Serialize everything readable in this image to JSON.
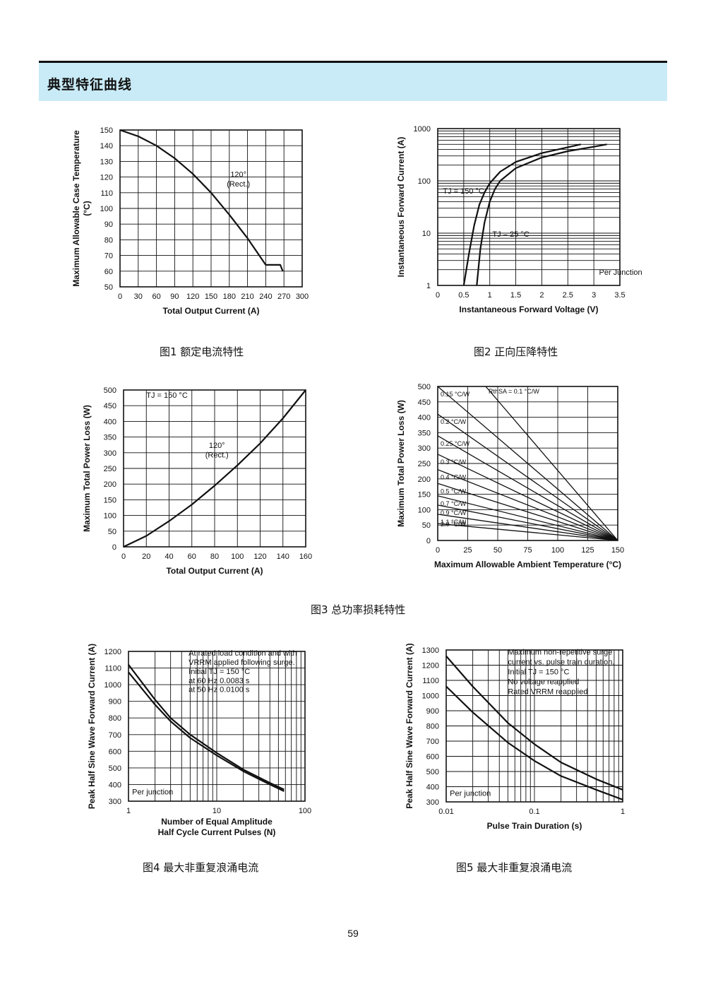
{
  "header": {
    "title": "典型特征曲线"
  },
  "captions": {
    "fig1": "图1  额定电流特性",
    "fig2": "图2  正向压降特性",
    "fig3": "图3  总功率损耗特性",
    "fig4": "图4  最大非重复浪涌电流",
    "fig5": "图5  最大非重复浪涌电流"
  },
  "page_number": "59",
  "chart_data": [
    {
      "id": "fig1",
      "type": "line",
      "xlabel": "Total Output Current (A)",
      "ylabel": "Maximum Allowable Case Temperature (°C)",
      "xlim": [
        0,
        300
      ],
      "ylim": [
        50,
        150
      ],
      "xticks": [
        0,
        30,
        60,
        90,
        120,
        150,
        180,
        210,
        240,
        270,
        300
      ],
      "yticks": [
        50,
        60,
        70,
        80,
        90,
        100,
        110,
        120,
        130,
        140,
        150
      ],
      "grid": true,
      "annotations": [
        {
          "text": "120°",
          "x": 195,
          "y": 120
        },
        {
          "text": "(Rect.)",
          "x": 195,
          "y": 114
        }
      ],
      "series": [
        {
          "name": "120° (Rect.)",
          "x": [
            0,
            30,
            60,
            90,
            120,
            150,
            180,
            210,
            240,
            264,
            268
          ],
          "y": [
            150,
            146,
            140,
            132,
            122,
            110,
            96,
            81,
            64,
            64,
            60
          ]
        }
      ]
    },
    {
      "id": "fig2",
      "type": "line",
      "xlabel": "Instantaneous Forward Voltage (V)",
      "ylabel": "Instantaneous Forward Current (A)",
      "xlim": [
        0,
        3.5
      ],
      "ylim": [
        1,
        1000
      ],
      "yscale": "log",
      "xticks": [
        0,
        0.5,
        1.0,
        1.5,
        2.0,
        2.5,
        3.0,
        3.5
      ],
      "yticks": [
        1,
        10,
        100,
        1000
      ],
      "grid": true,
      "annotations": [
        {
          "text": "Per Junction",
          "x": 3.1,
          "y": 1.6
        }
      ],
      "series": [
        {
          "name": "TJ = 150 °C",
          "x": [
            0.5,
            0.6,
            0.7,
            0.8,
            0.9,
            1.0,
            1.2,
            1.5,
            2.0,
            2.5,
            2.75
          ],
          "y": [
            1,
            4,
            14,
            35,
            60,
            90,
            150,
            230,
            340,
            440,
            500
          ]
        },
        {
          "name": "TJ = 25 °C",
          "x": [
            0.75,
            0.82,
            0.9,
            1.0,
            1.1,
            1.2,
            1.5,
            2.0,
            2.5,
            3.0,
            3.25
          ],
          "y": [
            1,
            5,
            16,
            40,
            70,
            100,
            175,
            280,
            370,
            450,
            500
          ]
        }
      ]
    },
    {
      "id": "fig3a",
      "type": "line",
      "xlabel": "Total Output Current (A)",
      "ylabel": "Maximum Total Power Loss (W)",
      "xlim": [
        0,
        160
      ],
      "ylim": [
        0,
        500
      ],
      "xticks": [
        0,
        20,
        40,
        60,
        80,
        100,
        120,
        140,
        160
      ],
      "yticks": [
        0,
        50,
        100,
        150,
        200,
        250,
        300,
        350,
        400,
        450,
        500
      ],
      "grid": true,
      "annotations": [
        {
          "text": "TJ = 150 °C",
          "x": 20,
          "y": 475
        },
        {
          "text": "120°",
          "x": 82,
          "y": 315
        },
        {
          "text": "(Rect.)",
          "x": 82,
          "y": 285
        }
      ],
      "series": [
        {
          "name": "120° (Rect.)",
          "x": [
            0,
            20,
            40,
            60,
            80,
            100,
            120,
            140,
            160
          ],
          "y": [
            0,
            35,
            82,
            135,
            195,
            260,
            330,
            410,
            500
          ]
        }
      ]
    },
    {
      "id": "fig3b",
      "type": "line",
      "xlabel": "Maximum Allowable Ambient Temperature (°C)",
      "ylabel": "Maximum Total Power Loss (W)",
      "xlim": [
        0,
        150
      ],
      "ylim": [
        0,
        500
      ],
      "xticks": [
        0,
        25,
        50,
        75,
        100,
        125,
        150
      ],
      "yticks": [
        0,
        50,
        100,
        150,
        200,
        250,
        300,
        350,
        400,
        450,
        500
      ],
      "grid": true,
      "series": [
        {
          "name": "RthSA = 0.1 °C/W",
          "x": [
            40,
            150
          ],
          "y": [
            500,
            0
          ]
        },
        {
          "name": "0.15 °C/W",
          "x": [
            0,
            150
          ],
          "y": [
            500,
            0
          ]
        },
        {
          "name": "0.2 °C/W",
          "x": [
            0,
            150
          ],
          "y": [
            410,
            0
          ]
        },
        {
          "name": "0.25 °C/W",
          "x": [
            0,
            150
          ],
          "y": [
            340,
            0
          ]
        },
        {
          "name": "0.3 °C/W",
          "x": [
            0,
            150
          ],
          "y": [
            280,
            0
          ]
        },
        {
          "name": "0.4 °C/W",
          "x": [
            0,
            150
          ],
          "y": [
            230,
            0
          ]
        },
        {
          "name": "0.5 °C/W",
          "x": [
            0,
            150
          ],
          "y": [
            185,
            0
          ]
        },
        {
          "name": "0.7 °C/W",
          "x": [
            0,
            150
          ],
          "y": [
            145,
            0
          ]
        },
        {
          "name": "0.9 °C/W",
          "x": [
            0,
            150
          ],
          "y": [
            115,
            0
          ]
        },
        {
          "name": "1.1 °C/W",
          "x": [
            0,
            150
          ],
          "y": [
            85,
            0
          ]
        },
        {
          "name": "2.0 °C/W",
          "x": [
            0,
            150
          ],
          "y": [
            55,
            0
          ]
        }
      ]
    },
    {
      "id": "fig4",
      "type": "line",
      "xlabel": "Number of Equal Amplitude Half Cycle Current Pulses (N)",
      "ylabel": "Peak Half Sine Wave Forward Current (A)",
      "xlim": [
        1,
        100
      ],
      "ylim": [
        300,
        1200
      ],
      "xscale": "log",
      "xticks": [
        1,
        10,
        100
      ],
      "yticks": [
        300,
        400,
        500,
        600,
        700,
        800,
        900,
        1000,
        1100,
        1200
      ],
      "grid": true,
      "annotations": [
        {
          "text": "At rated load condition and with",
          "x": 4.8,
          "y": 1175
        },
        {
          "text": "VRRM applied following surge.",
          "x": 4.8,
          "y": 1120
        },
        {
          "text": "Initial TJ = 150 °C",
          "x": 4.8,
          "y": 1065
        },
        {
          "text": "at 60 Hz 0.0083 s",
          "x": 4.8,
          "y": 1010
        },
        {
          "text": "at 50 Hz 0.0100 s",
          "x": 4.8,
          "y": 955
        },
        {
          "text": "Per junction",
          "x": 1.1,
          "y": 340
        }
      ],
      "series": [
        {
          "name": "at 60 Hz 0.0083 s",
          "x": [
            1,
            2,
            3,
            5,
            10,
            20,
            40,
            58
          ],
          "y": [
            1120,
            910,
            800,
            700,
            590,
            490,
            410,
            370
          ]
        },
        {
          "name": "at 50 Hz 0.0100 s",
          "x": [
            1,
            2,
            3,
            5,
            10,
            20,
            40,
            58
          ],
          "y": [
            1075,
            880,
            780,
            680,
            575,
            480,
            400,
            360
          ]
        }
      ]
    },
    {
      "id": "fig5",
      "type": "line",
      "xlabel": "Pulse Train Duration (s)",
      "ylabel": "Peak Half Sine Wave Forward Current (A)",
      "xlim": [
        0.01,
        1
      ],
      "ylim": [
        300,
        1300
      ],
      "xscale": "log",
      "xticks": [
        0.01,
        0.1,
        1
      ],
      "yticks": [
        300,
        400,
        500,
        600,
        700,
        800,
        900,
        1000,
        1100,
        1200,
        1300
      ],
      "grid": true,
      "annotations": [
        {
          "text": "Maximum non-repetitive surge",
          "x": 0.05,
          "y": 1270
        },
        {
          "text": "current vs. pulse train duration.",
          "x": 0.05,
          "y": 1205
        },
        {
          "text": "Initial TJ = 150 °C",
          "x": 0.05,
          "y": 1140
        },
        {
          "text": "No voltage reapplied",
          "x": 0.05,
          "y": 1075
        },
        {
          "text": "Rated VRRM reapplied",
          "x": 0.05,
          "y": 1010
        },
        {
          "text": "Per junction",
          "x": 0.011,
          "y": 340
        }
      ],
      "series": [
        {
          "name": "No voltage reapplied",
          "x": [
            0.01,
            0.02,
            0.05,
            0.1,
            0.2,
            0.5,
            1
          ],
          "y": [
            1260,
            1060,
            820,
            680,
            560,
            450,
            380
          ]
        },
        {
          "name": "Rated VRRM reapplied",
          "x": [
            0.01,
            0.02,
            0.05,
            0.1,
            0.2,
            0.5,
            1
          ],
          "y": [
            1060,
            890,
            690,
            570,
            470,
            380,
            315
          ]
        }
      ]
    }
  ]
}
